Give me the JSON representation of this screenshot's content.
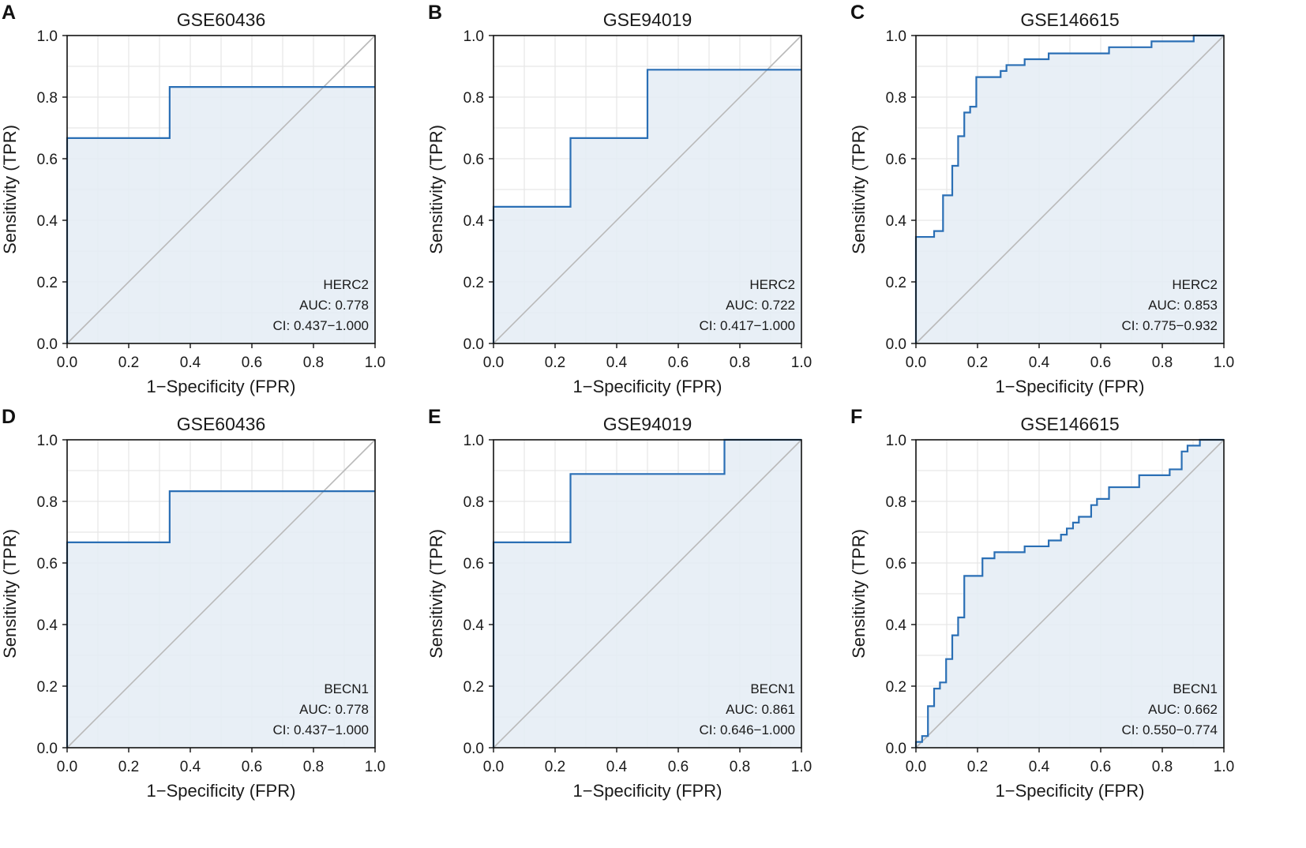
{
  "colors": {
    "roc_line": "#2a6fb5",
    "roc_fill": "#e4ecf5",
    "grid": "#e6e6e6",
    "diagonal": "#b9b9b9",
    "axis": "#111111"
  },
  "chart_data": [
    {
      "panel": "A",
      "type": "line",
      "title": "GSE60436",
      "xlabel": "1−Specificity (FPR)",
      "ylabel": "Sensitivity (TPR)",
      "xlim": [
        0,
        1
      ],
      "ylim": [
        0,
        1
      ],
      "xticks": [
        "0.0",
        "0.2",
        "0.4",
        "0.6",
        "0.8",
        "1.0"
      ],
      "yticks": [
        "0.0",
        "0.2",
        "0.4",
        "0.6",
        "0.8",
        "1.0"
      ],
      "grid": true,
      "diagonal": true,
      "legend_position": "bottom-right",
      "gene": "HERC2",
      "auc": "AUC: 0.778",
      "ci": "CI: 0.437−1.000",
      "points": [
        [
          0,
          0
        ],
        [
          0,
          0.667
        ],
        [
          0.333,
          0.667
        ],
        [
          0.333,
          0.833
        ],
        [
          1,
          0.833
        ]
      ]
    },
    {
      "panel": "B",
      "type": "line",
      "title": "GSE94019",
      "xlabel": "1−Specificity (FPR)",
      "ylabel": "Sensitivity (TPR)",
      "xlim": [
        0,
        1
      ],
      "ylim": [
        0,
        1
      ],
      "xticks": [
        "0.0",
        "0.2",
        "0.4",
        "0.6",
        "0.8",
        "1.0"
      ],
      "yticks": [
        "0.0",
        "0.2",
        "0.4",
        "0.6",
        "0.8",
        "1.0"
      ],
      "grid": true,
      "diagonal": true,
      "legend_position": "bottom-right",
      "gene": "HERC2",
      "auc": "AUC: 0.722",
      "ci": "CI: 0.417−1.000",
      "points": [
        [
          0,
          0
        ],
        [
          0,
          0.444
        ],
        [
          0.25,
          0.444
        ],
        [
          0.25,
          0.667
        ],
        [
          0.5,
          0.667
        ],
        [
          0.5,
          0.889
        ],
        [
          1,
          0.889
        ]
      ]
    },
    {
      "panel": "C",
      "type": "line",
      "title": "GSE146615",
      "xlabel": "1−Specificity (FPR)",
      "ylabel": "Sensitivity (TPR)",
      "xlim": [
        0,
        1
      ],
      "ylim": [
        0,
        1
      ],
      "xticks": [
        "0.0",
        "0.2",
        "0.4",
        "0.6",
        "0.8",
        "1.0"
      ],
      "yticks": [
        "0.0",
        "0.2",
        "0.4",
        "0.6",
        "0.8",
        "1.0"
      ],
      "grid": true,
      "diagonal": true,
      "legend_position": "bottom-right",
      "gene": "HERC2",
      "auc": "AUC: 0.853",
      "ci": "CI: 0.775−0.932",
      "points": [
        [
          0,
          0
        ],
        [
          0,
          0.346
        ],
        [
          0.059,
          0.346
        ],
        [
          0.059,
          0.365
        ],
        [
          0.088,
          0.365
        ],
        [
          0.088,
          0.481
        ],
        [
          0.118,
          0.481
        ],
        [
          0.118,
          0.577
        ],
        [
          0.137,
          0.577
        ],
        [
          0.137,
          0.673
        ],
        [
          0.157,
          0.673
        ],
        [
          0.157,
          0.75
        ],
        [
          0.176,
          0.75
        ],
        [
          0.176,
          0.769
        ],
        [
          0.196,
          0.769
        ],
        [
          0.196,
          0.865
        ],
        [
          0.275,
          0.865
        ],
        [
          0.275,
          0.885
        ],
        [
          0.294,
          0.885
        ],
        [
          0.294,
          0.904
        ],
        [
          0.353,
          0.904
        ],
        [
          0.353,
          0.923
        ],
        [
          0.431,
          0.923
        ],
        [
          0.431,
          0.942
        ],
        [
          0.627,
          0.942
        ],
        [
          0.627,
          0.962
        ],
        [
          0.765,
          0.962
        ],
        [
          0.765,
          0.981
        ],
        [
          0.902,
          0.981
        ],
        [
          0.902,
          1.0
        ],
        [
          1,
          1.0
        ]
      ]
    },
    {
      "panel": "D",
      "type": "line",
      "title": "GSE60436",
      "xlabel": "1−Specificity (FPR)",
      "ylabel": "Sensitivity (TPR)",
      "xlim": [
        0,
        1
      ],
      "ylim": [
        0,
        1
      ],
      "xticks": [
        "0.0",
        "0.2",
        "0.4",
        "0.6",
        "0.8",
        "1.0"
      ],
      "yticks": [
        "0.0",
        "0.2",
        "0.4",
        "0.6",
        "0.8",
        "1.0"
      ],
      "grid": true,
      "diagonal": true,
      "legend_position": "bottom-right",
      "gene": "BECN1",
      "auc": "AUC: 0.778",
      "ci": "CI: 0.437−1.000",
      "points": [
        [
          0,
          0
        ],
        [
          0,
          0.667
        ],
        [
          0.333,
          0.667
        ],
        [
          0.333,
          0.833
        ],
        [
          1,
          0.833
        ]
      ]
    },
    {
      "panel": "E",
      "type": "line",
      "title": "GSE94019",
      "xlabel": "1−Specificity (FPR)",
      "ylabel": "Sensitivity (TPR)",
      "xlim": [
        0,
        1
      ],
      "ylim": [
        0,
        1
      ],
      "xticks": [
        "0.0",
        "0.2",
        "0.4",
        "0.6",
        "0.8",
        "1.0"
      ],
      "yticks": [
        "0.0",
        "0.2",
        "0.4",
        "0.6",
        "0.8",
        "1.0"
      ],
      "grid": true,
      "diagonal": true,
      "legend_position": "bottom-right",
      "gene": "BECN1",
      "auc": "AUC: 0.861",
      "ci": "CI: 0.646−1.000",
      "points": [
        [
          0,
          0
        ],
        [
          0,
          0.667
        ],
        [
          0.25,
          0.667
        ],
        [
          0.25,
          0.889
        ],
        [
          0.75,
          0.889
        ],
        [
          0.75,
          1.0
        ],
        [
          1,
          1.0
        ]
      ]
    },
    {
      "panel": "F",
      "type": "line",
      "title": "GSE146615",
      "xlabel": "1−Specificity (FPR)",
      "ylabel": "Sensitivity (TPR)",
      "xlim": [
        0,
        1
      ],
      "ylim": [
        0,
        1
      ],
      "xticks": [
        "0.0",
        "0.2",
        "0.4",
        "0.6",
        "0.8",
        "1.0"
      ],
      "yticks": [
        "0.0",
        "0.2",
        "0.4",
        "0.6",
        "0.8",
        "1.0"
      ],
      "grid": true,
      "diagonal": true,
      "legend_position": "bottom-right",
      "gene": "BECN1",
      "auc": "AUC: 0.662",
      "ci": "CI: 0.550−0.774",
      "points": [
        [
          0,
          0
        ],
        [
          0,
          0.019
        ],
        [
          0.02,
          0.019
        ],
        [
          0.02,
          0.038
        ],
        [
          0.039,
          0.038
        ],
        [
          0.039,
          0.135
        ],
        [
          0.059,
          0.135
        ],
        [
          0.059,
          0.192
        ],
        [
          0.078,
          0.192
        ],
        [
          0.078,
          0.212
        ],
        [
          0.098,
          0.212
        ],
        [
          0.098,
          0.288
        ],
        [
          0.118,
          0.288
        ],
        [
          0.118,
          0.365
        ],
        [
          0.137,
          0.365
        ],
        [
          0.137,
          0.423
        ],
        [
          0.157,
          0.423
        ],
        [
          0.157,
          0.558
        ],
        [
          0.216,
          0.558
        ],
        [
          0.216,
          0.615
        ],
        [
          0.255,
          0.615
        ],
        [
          0.255,
          0.635
        ],
        [
          0.353,
          0.635
        ],
        [
          0.353,
          0.654
        ],
        [
          0.431,
          0.654
        ],
        [
          0.431,
          0.673
        ],
        [
          0.471,
          0.673
        ],
        [
          0.471,
          0.692
        ],
        [
          0.49,
          0.692
        ],
        [
          0.49,
          0.712
        ],
        [
          0.51,
          0.712
        ],
        [
          0.51,
          0.731
        ],
        [
          0.529,
          0.731
        ],
        [
          0.529,
          0.75
        ],
        [
          0.569,
          0.75
        ],
        [
          0.569,
          0.788
        ],
        [
          0.588,
          0.788
        ],
        [
          0.588,
          0.808
        ],
        [
          0.627,
          0.808
        ],
        [
          0.627,
          0.846
        ],
        [
          0.725,
          0.846
        ],
        [
          0.725,
          0.885
        ],
        [
          0.824,
          0.885
        ],
        [
          0.824,
          0.904
        ],
        [
          0.863,
          0.904
        ],
        [
          0.863,
          0.962
        ],
        [
          0.882,
          0.962
        ],
        [
          0.882,
          0.981
        ],
        [
          0.922,
          0.981
        ],
        [
          0.922,
          1.0
        ],
        [
          1,
          1.0
        ]
      ]
    }
  ]
}
